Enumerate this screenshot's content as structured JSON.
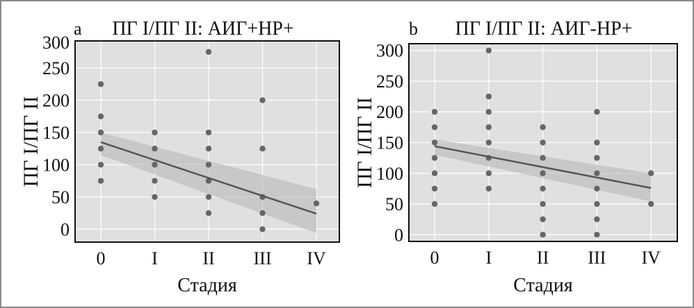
{
  "chart_data": [
    {
      "type": "scatter",
      "panel_letter": "a",
      "title": "ПГ I/ПГ II: АИГ+НР+",
      "xlabel": "Стадия",
      "ylabel": "ПГ I/ПГ II",
      "categories": [
        "0",
        "I",
        "II",
        "III",
        "IV"
      ],
      "yticks": [
        0,
        50,
        100,
        150,
        200,
        250,
        300
      ],
      "ylim": [
        -20,
        292
      ],
      "grid": true,
      "points": [
        {
          "x": 0,
          "y": 225
        },
        {
          "x": 0,
          "y": 175
        },
        {
          "x": 0,
          "y": 150
        },
        {
          "x": 0,
          "y": 125
        },
        {
          "x": 0,
          "y": 100
        },
        {
          "x": 0,
          "y": 75
        },
        {
          "x": 1,
          "y": 150
        },
        {
          "x": 1,
          "y": 125
        },
        {
          "x": 1,
          "y": 100
        },
        {
          "x": 1,
          "y": 75
        },
        {
          "x": 1,
          "y": 50
        },
        {
          "x": 2,
          "y": 275
        },
        {
          "x": 2,
          "y": 150
        },
        {
          "x": 2,
          "y": 125
        },
        {
          "x": 2,
          "y": 100
        },
        {
          "x": 2,
          "y": 75
        },
        {
          "x": 2,
          "y": 50
        },
        {
          "x": 2,
          "y": 25
        },
        {
          "x": 3,
          "y": 200
        },
        {
          "x": 3,
          "y": 125
        },
        {
          "x": 3,
          "y": 50
        },
        {
          "x": 3,
          "y": 25
        },
        {
          "x": 3,
          "y": 0
        },
        {
          "x": 4,
          "y": 40
        }
      ],
      "fit": {
        "start": 135,
        "end": 24,
        "ci_start": [
          115,
          150
        ],
        "ci_end": [
          -6,
          62
        ]
      }
    },
    {
      "type": "scatter",
      "panel_letter": "b",
      "title": "ПГ I/ПГ II: АИГ-НР+",
      "xlabel": "Стадия",
      "ylabel": "ПГ I/ПГ II",
      "categories": [
        "0",
        "I",
        "II",
        "III",
        "IV"
      ],
      "yticks": [
        0,
        50,
        100,
        150,
        200,
        250,
        300
      ],
      "ylim": [
        -11,
        311
      ],
      "grid": true,
      "points": [
        {
          "x": 0,
          "y": 200
        },
        {
          "x": 0,
          "y": 175
        },
        {
          "x": 0,
          "y": 150
        },
        {
          "x": 0,
          "y": 125
        },
        {
          "x": 0,
          "y": 100
        },
        {
          "x": 0,
          "y": 75
        },
        {
          "x": 0,
          "y": 50
        },
        {
          "x": 1,
          "y": 300
        },
        {
          "x": 1,
          "y": 225
        },
        {
          "x": 1,
          "y": 200
        },
        {
          "x": 1,
          "y": 175
        },
        {
          "x": 1,
          "y": 150
        },
        {
          "x": 1,
          "y": 125
        },
        {
          "x": 1,
          "y": 100
        },
        {
          "x": 1,
          "y": 75
        },
        {
          "x": 2,
          "y": 175
        },
        {
          "x": 2,
          "y": 150
        },
        {
          "x": 2,
          "y": 125
        },
        {
          "x": 2,
          "y": 100
        },
        {
          "x": 2,
          "y": 75
        },
        {
          "x": 2,
          "y": 50
        },
        {
          "x": 2,
          "y": 25
        },
        {
          "x": 2,
          "y": 0
        },
        {
          "x": 3,
          "y": 200
        },
        {
          "x": 3,
          "y": 150
        },
        {
          "x": 3,
          "y": 125
        },
        {
          "x": 3,
          "y": 100
        },
        {
          "x": 3,
          "y": 75
        },
        {
          "x": 3,
          "y": 50
        },
        {
          "x": 3,
          "y": 25
        },
        {
          "x": 3,
          "y": 0
        },
        {
          "x": 4,
          "y": 100
        },
        {
          "x": 4,
          "y": 50
        }
      ],
      "fit": {
        "start": 144,
        "end": 76,
        "ci_start": [
          130,
          155
        ],
        "ci_end": [
          54,
          100
        ]
      }
    }
  ]
}
